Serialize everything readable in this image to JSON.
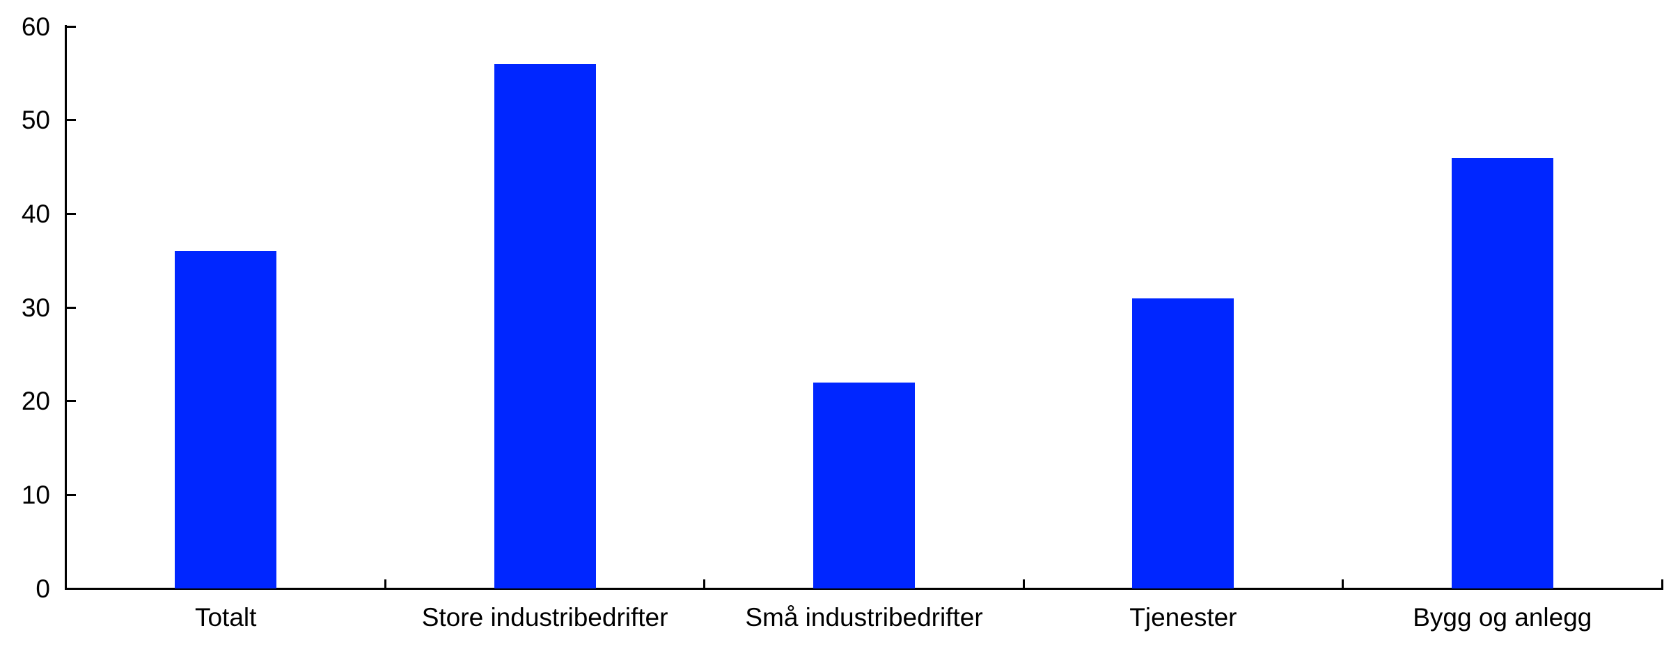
{
  "chart_data": {
    "type": "bar",
    "categories": [
      "Totalt",
      "Store industribedrifter",
      "Små industribedrifter",
      "Tjenester",
      "Bygg og anlegg"
    ],
    "values": [
      36,
      56,
      22,
      31,
      46
    ],
    "ylim": [
      0,
      60
    ],
    "yticks": [
      0,
      10,
      20,
      30,
      40,
      50,
      60
    ],
    "grid": false,
    "legend": "none",
    "tick_direction": "inward",
    "bar_color": "#0026FF",
    "axis_color": "#000000",
    "background_color": "#FFFFFF"
  }
}
